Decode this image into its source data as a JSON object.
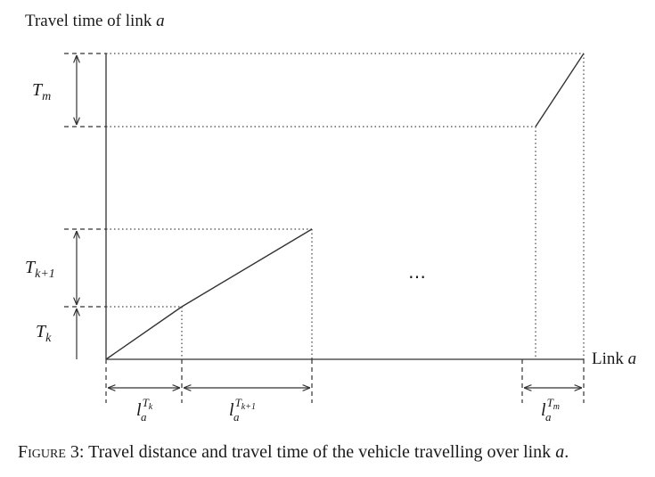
{
  "y_axis_label": {
    "text": "Travel time of link ",
    "var": "a"
  },
  "x_axis_label": {
    "text": "Link ",
    "var": "a"
  },
  "time_labels": {
    "tm": {
      "base": "T",
      "sub": "m"
    },
    "tk1": {
      "base": "T",
      "sub": "k+1"
    },
    "tk": {
      "base": "T",
      "sub": "k"
    }
  },
  "distance_labels": {
    "lk": {
      "base": "l",
      "sub": "a",
      "sup_base": "T",
      "sup_sub": "k"
    },
    "lk1": {
      "base": "l",
      "sub": "a",
      "sup_base": "T",
      "sup_sub": "k+1"
    },
    "lm": {
      "base": "l",
      "sub": "a",
      "sup_base": "T",
      "sup_sub": "m"
    }
  },
  "ellipsis": "⋯",
  "caption": {
    "prefix": "Figure 3:",
    "text": " Travel distance and travel time of the vehicle travelling over link ",
    "var": "a",
    "suffix": "."
  },
  "colors": {
    "line": "#333333",
    "text": "#1a1a1a"
  }
}
